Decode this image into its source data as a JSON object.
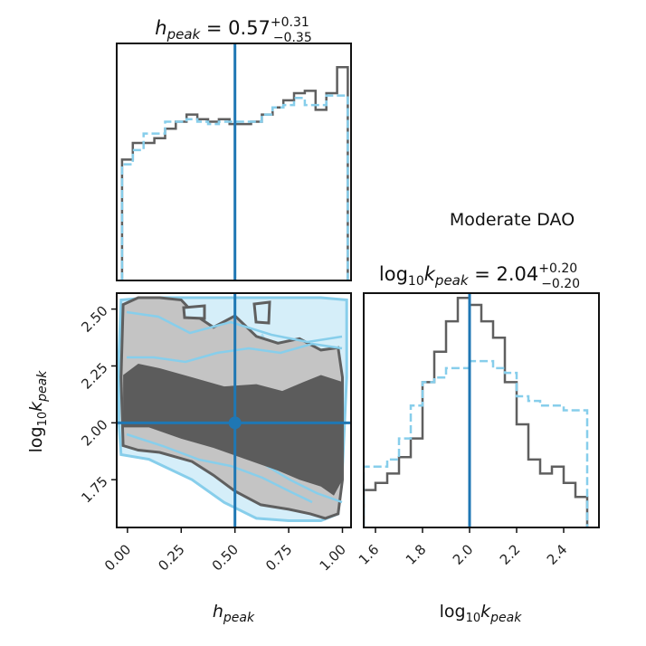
{
  "annotation": "Moderate DAO",
  "colors": {
    "truth": "#1f77b4",
    "dark": "#5f5f5f",
    "light": "#87ceeb",
    "light_fill": "#d5eef9",
    "light_mid": "#a9dcf1",
    "dark_fill_outer": "#c4c4c4",
    "dark_fill_inner": "#5c5c5c"
  },
  "chart_data": [
    {
      "type": "histogram",
      "panel": "h_peak marginal",
      "title": {
        "var": "h",
        "sub": "peak",
        "value": "0.57",
        "plus": "+0.31",
        "minus": "−0.35"
      },
      "xlim": [
        -0.05,
        1.04
      ],
      "truth_x": 0.5,
      "bin_edges": [
        -0.025,
        0.025,
        0.075,
        0.125,
        0.175,
        0.225,
        0.275,
        0.325,
        0.375,
        0.425,
        0.475,
        0.525,
        0.575,
        0.625,
        0.675,
        0.725,
        0.775,
        0.825,
        0.875,
        0.925,
        0.975,
        1.025
      ],
      "series": [
        {
          "name": "dark (solid)",
          "values": [
            0.51,
            0.58,
            0.58,
            0.6,
            0.64,
            0.67,
            0.7,
            0.68,
            0.67,
            0.68,
            0.66,
            0.66,
            0.67,
            0.7,
            0.73,
            0.76,
            0.79,
            0.8,
            0.72,
            0.79,
            0.9
          ]
        },
        {
          "name": "light (dashed)",
          "values": [
            0.49,
            0.55,
            0.62,
            0.62,
            0.67,
            0.67,
            0.68,
            0.67,
            0.66,
            0.67,
            0.67,
            0.67,
            0.67,
            0.7,
            0.73,
            0.74,
            0.77,
            0.74,
            0.74,
            0.78,
            0.78
          ]
        }
      ]
    },
    {
      "type": "contour",
      "panel": "joint h_peak vs log10 k_peak",
      "xlim": [
        -0.05,
        1.04
      ],
      "ylim": [
        1.54,
        2.57
      ],
      "xticks": [
        "0.00",
        "0.25",
        "0.50",
        "0.75",
        "1.00"
      ],
      "yticks": [
        "1.75",
        "2.00",
        "2.25",
        "2.50"
      ],
      "xlabel": {
        "var": "h",
        "sub": "peak"
      },
      "ylabel": {
        "pre": "log",
        "pre_sub": "10",
        "var": "k",
        "sub": "peak"
      },
      "truth": [
        0.5,
        2.0
      ],
      "levels": [
        {
          "name": "light outer",
          "x": [
            -0.03,
            0.1,
            0.3,
            0.5,
            0.7,
            0.9,
            1.02,
            1.02,
            1.0,
            0.98,
            0.9,
            0.75,
            0.6,
            0.45,
            0.3,
            0.1,
            -0.03,
            -0.04,
            -0.04,
            -0.03
          ],
          "y": [
            2.54,
            2.55,
            2.55,
            2.55,
            2.55,
            2.55,
            2.54,
            2.2,
            1.8,
            1.6,
            1.57,
            1.57,
            1.58,
            1.65,
            1.75,
            1.84,
            1.86,
            2.0,
            2.3,
            2.54
          ]
        },
        {
          "name": "dark outer",
          "x": [
            -0.02,
            0.05,
            0.15,
            0.25,
            0.32,
            0.4,
            0.5,
            0.6,
            0.7,
            0.8,
            0.9,
            0.98,
            1.0,
            1.0,
            0.98,
            0.92,
            0.85,
            0.75,
            0.62,
            0.5,
            0.4,
            0.3,
            0.15,
            0.05,
            -0.02,
            -0.03
          ],
          "y": [
            2.52,
            2.55,
            2.55,
            2.54,
            2.47,
            2.42,
            2.47,
            2.38,
            2.35,
            2.37,
            2.32,
            2.33,
            2.2,
            1.75,
            1.6,
            1.58,
            1.6,
            1.62,
            1.64,
            1.7,
            1.77,
            1.83,
            1.87,
            1.88,
            1.9,
            2.2
          ]
        },
        {
          "name": "dark inner",
          "x": [
            -0.02,
            0.05,
            0.15,
            0.3,
            0.45,
            0.6,
            0.72,
            0.82,
            0.9,
            1.0,
            1.0,
            0.96,
            0.9,
            0.8,
            0.7,
            0.55,
            0.4,
            0.25,
            0.1,
            -0.02
          ],
          "y": [
            2.21,
            2.26,
            2.24,
            2.2,
            2.16,
            2.17,
            2.14,
            2.18,
            2.21,
            2.18,
            1.75,
            1.68,
            1.72,
            1.75,
            1.79,
            1.84,
            1.89,
            1.93,
            1.98,
            1.98
          ]
        }
      ]
    },
    {
      "type": "histogram",
      "panel": "log10 k_peak marginal",
      "title": {
        "pre": "log",
        "pre_sub": "10",
        "var": "k",
        "sub": "peak",
        "value": "2.04",
        "plus": "+0.20",
        "minus": "−0.20"
      },
      "xlim": [
        1.55,
        2.55
      ],
      "xticks": [
        "1.6",
        "1.8",
        "2.0",
        "2.2",
        "2.4"
      ],
      "xlabel": {
        "pre": "log",
        "pre_sub": "10",
        "var": "k",
        "sub": "peak"
      },
      "truth_x": 2.0,
      "bin_edges": [
        1.55,
        1.6,
        1.65,
        1.7,
        1.75,
        1.8,
        1.85,
        1.9,
        1.95,
        2.0,
        2.05,
        2.1,
        2.15,
        2.2,
        2.25,
        2.3,
        2.35,
        2.4,
        2.45,
        2.5
      ],
      "series": [
        {
          "name": "dark (solid)",
          "values": [
            0.16,
            0.19,
            0.23,
            0.3,
            0.38,
            0.62,
            0.75,
            0.88,
            0.98,
            0.95,
            0.88,
            0.81,
            0.62,
            0.44,
            0.29,
            0.23,
            0.26,
            0.19,
            0.13
          ]
        },
        {
          "name": "light (dashed)",
          "values": [
            0.26,
            0.26,
            0.29,
            0.38,
            0.52,
            0.62,
            0.64,
            0.68,
            0.68,
            0.71,
            0.71,
            0.68,
            0.66,
            0.56,
            0.54,
            0.52,
            0.52,
            0.5,
            0.5
          ]
        }
      ]
    }
  ]
}
